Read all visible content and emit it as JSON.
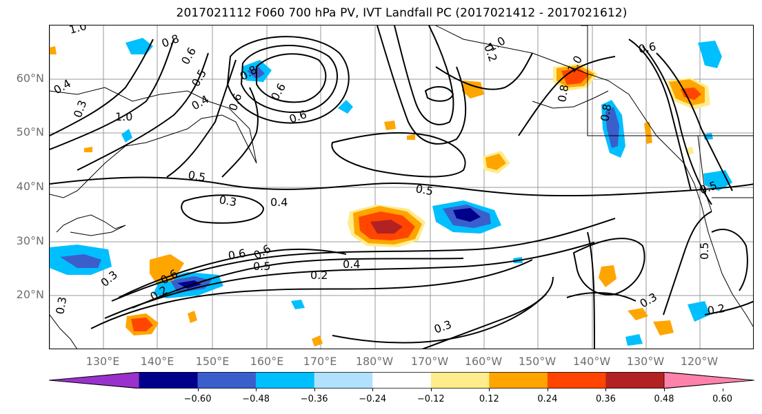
{
  "title": "2017021112 F060 700 hPa PV, IVT Landfall PC (2017021412 - 2017021612)",
  "lat_labels": [
    "60°N",
    "50°N",
    "40°N",
    "30°N",
    "20°N"
  ],
  "lon_labels": [
    "130°E",
    "140°E",
    "150°E",
    "160°E",
    "170°E",
    "180°W",
    "170°W",
    "160°W",
    "150°W",
    "140°W",
    "130°W",
    "120°W"
  ],
  "map": {
    "lon_range_deg_east": [
      121,
      251
    ],
    "lat_range_deg_north": [
      10,
      70
    ],
    "gridlines": true,
    "contour_labels": [
      "1.0",
      "0.8",
      "0.6",
      "0.4",
      "0.3",
      "1.0",
      "0.5",
      "0.4",
      "0.6",
      "0.8",
      "0.6",
      "0.6",
      "0.2",
      "1.0",
      "1.0",
      "0.8",
      "0.5",
      "0.4",
      "0.5",
      "0.3",
      "0.6",
      "0.3",
      "0.5",
      "0.6",
      "0.4",
      "0.2",
      "0.3",
      "0.2",
      "0.5",
      "0.8",
      "0.6",
      "0.2",
      "0.3",
      "0.5",
      "0.6",
      "0.3"
    ],
    "anomaly_colors": {
      "light_yellow": "#fde97e",
      "orange": "#ffa000",
      "red_orange": "#ff3c00",
      "dark_red": "#b22222",
      "light_blue": "#00bfff",
      "medium_blue": "#3a5fcd",
      "navy": "#00008b"
    }
  },
  "colorbar": {
    "ticks": [
      "−0.60",
      "−0.48",
      "−0.36",
      "−0.24",
      "−0.12",
      "0.12",
      "0.24",
      "0.36",
      "0.48",
      "0.60"
    ],
    "colors": [
      "#9932cc",
      "#00008b",
      "#3a5fcd",
      "#00bfff",
      "#b0e2ff",
      "#ffffff",
      "#ffec8b",
      "#ffa500",
      "#ff4500",
      "#b22222",
      "#ff82ab"
    ],
    "extend": "both"
  }
}
